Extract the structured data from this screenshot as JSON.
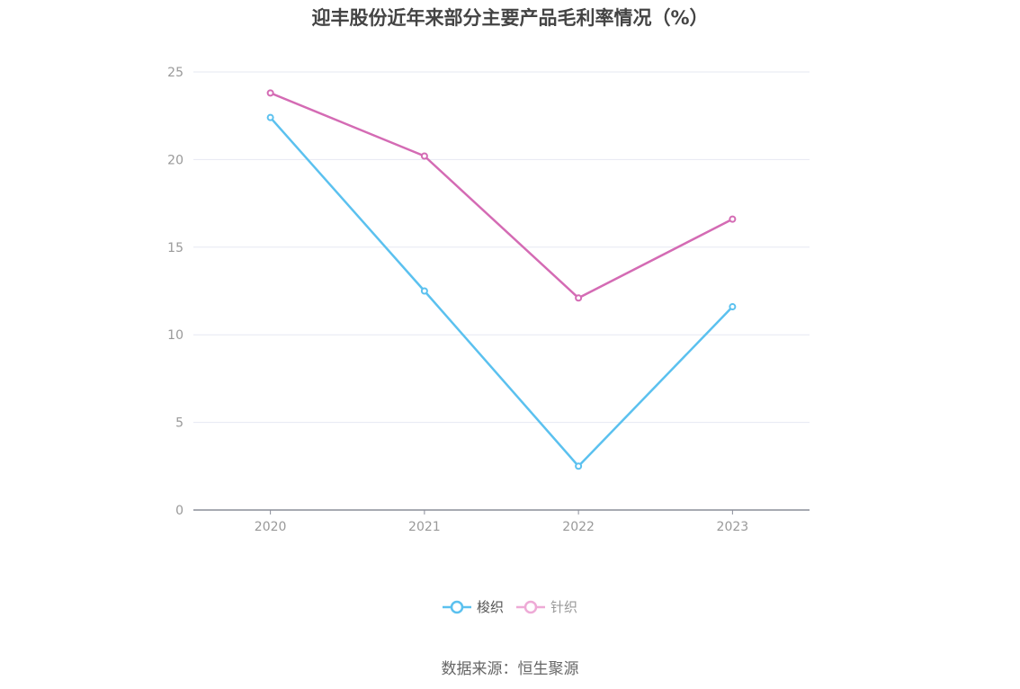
{
  "chart_data": {
    "type": "line",
    "title": "迎丰股份近年来部分主要产品毛利率情况（%）",
    "categories": [
      "2020",
      "2021",
      "2022",
      "2023"
    ],
    "series": [
      {
        "name": "梭织",
        "color": "#5bc1ef",
        "values": [
          22.4,
          12.5,
          2.5,
          11.6
        ]
      },
      {
        "name": "针织",
        "color": "#d46bb4",
        "values": [
          23.8,
          20.2,
          12.1,
          16.6
        ]
      }
    ],
    "ylim": [
      0,
      25
    ],
    "yticks": [
      "0",
      "5",
      "10",
      "15",
      "20",
      "25"
    ],
    "grid": true,
    "legend_position": "bottom"
  },
  "source": "数据来源：恒生聚源"
}
